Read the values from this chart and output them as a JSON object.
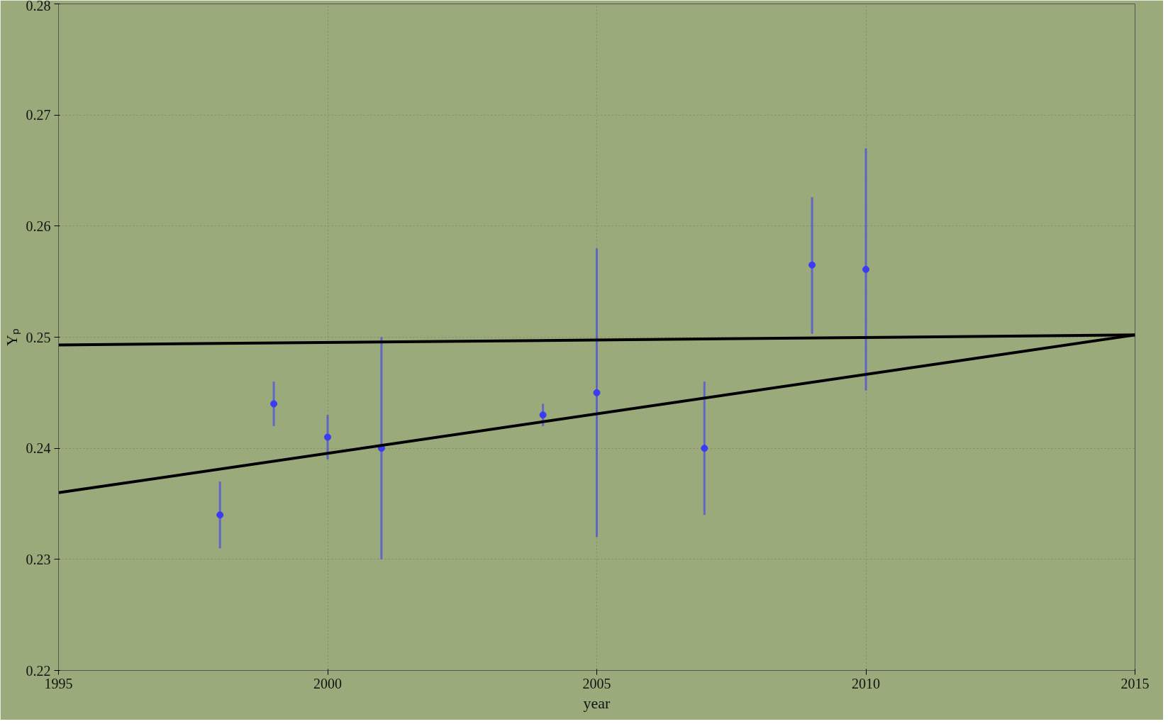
{
  "chart_data": {
    "type": "scatter",
    "xlabel": "year",
    "ylabel": "Yₚ",
    "xlim": [
      1995,
      2015
    ],
    "ylim": [
      0.22,
      0.28
    ],
    "xticks": [
      1995,
      2000,
      2005,
      2010,
      2015
    ],
    "yticks": [
      0.22,
      0.23,
      0.24,
      0.25,
      0.26,
      0.27,
      0.28
    ],
    "grid": true,
    "series": [
      {
        "marker": "circle",
        "color": "#3b3bf5",
        "x": [
          1998,
          1999,
          2000,
          2001,
          2004,
          2005,
          2007,
          2009,
          2010
        ],
        "values": [
          0.234,
          0.244,
          0.241,
          0.24,
          0.243,
          0.245,
          0.24,
          0.2565,
          0.2561
        ],
        "errors": [
          [
            0.231,
            0.237
          ],
          [
            0.242,
            0.246
          ],
          [
            0.239,
            0.243
          ],
          [
            0.23,
            0.25
          ],
          [
            0.242,
            0.244
          ],
          [
            0.232,
            0.258
          ],
          [
            0.234,
            0.246
          ],
          [
            0.2503,
            0.2626
          ],
          [
            0.2452,
            0.267
          ]
        ]
      },
      {
        "type": "line",
        "color": "#000000",
        "x": [
          1995,
          2015
        ],
        "values": [
          0.2493,
          0.2502
        ]
      },
      {
        "type": "line",
        "color": "#000000",
        "x": [
          1995,
          2015
        ],
        "values": [
          0.236,
          0.2502
        ]
      }
    ]
  }
}
